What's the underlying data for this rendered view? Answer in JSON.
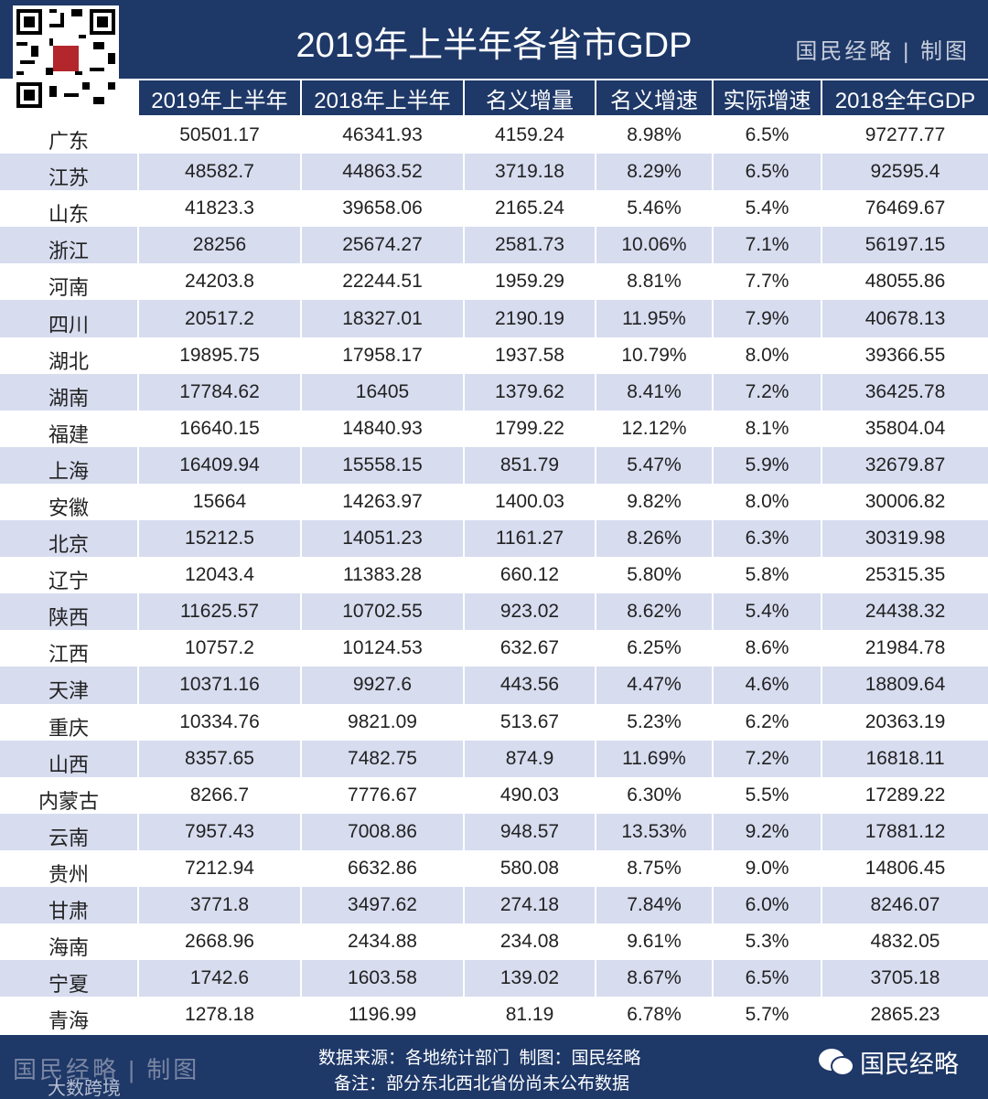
{
  "header": {
    "title": "2019年上半年各省市GDP",
    "brand": "国民经略",
    "brand_suffix": "制图"
  },
  "table": {
    "columns": [
      "2019年上半年",
      "2018年上半年",
      "名义增量",
      "名义增速",
      "实际增速",
      "2018全年GDP"
    ],
    "rows": [
      [
        "广东",
        "50501.17",
        "46341.93",
        "4159.24",
        "8.98%",
        "6.5%",
        "97277.77"
      ],
      [
        "江苏",
        "48582.7",
        "44863.52",
        "3719.18",
        "8.29%",
        "6.5%",
        "92595.4"
      ],
      [
        "山东",
        "41823.3",
        "39658.06",
        "2165.24",
        "5.46%",
        "5.4%",
        "76469.67"
      ],
      [
        "浙江",
        "28256",
        "25674.27",
        "2581.73",
        "10.06%",
        "7.1%",
        "56197.15"
      ],
      [
        "河南",
        "24203.8",
        "22244.51",
        "1959.29",
        "8.81%",
        "7.7%",
        "48055.86"
      ],
      [
        "四川",
        "20517.2",
        "18327.01",
        "2190.19",
        "11.95%",
        "7.9%",
        "40678.13"
      ],
      [
        "湖北",
        "19895.75",
        "17958.17",
        "1937.58",
        "10.79%",
        "8.0%",
        "39366.55"
      ],
      [
        "湖南",
        "17784.62",
        "16405",
        "1379.62",
        "8.41%",
        "7.2%",
        "36425.78"
      ],
      [
        "福建",
        "16640.15",
        "14840.93",
        "1799.22",
        "12.12%",
        "8.1%",
        "35804.04"
      ],
      [
        "上海",
        "16409.94",
        "15558.15",
        "851.79",
        "5.47%",
        "5.9%",
        "32679.87"
      ],
      [
        "安徽",
        "15664",
        "14263.97",
        "1400.03",
        "9.82%",
        "8.0%",
        "30006.82"
      ],
      [
        "北京",
        "15212.5",
        "14051.23",
        "1161.27",
        "8.26%",
        "6.3%",
        "30319.98"
      ],
      [
        "辽宁",
        "12043.4",
        "11383.28",
        "660.12",
        "5.80%",
        "5.8%",
        "25315.35"
      ],
      [
        "陕西",
        "11625.57",
        "10702.55",
        "923.02",
        "8.62%",
        "5.4%",
        "24438.32"
      ],
      [
        "江西",
        "10757.2",
        "10124.53",
        "632.67",
        "6.25%",
        "8.6%",
        "21984.78"
      ],
      [
        "天津",
        "10371.16",
        "9927.6",
        "443.56",
        "4.47%",
        "4.6%",
        "18809.64"
      ],
      [
        "重庆",
        "10334.76",
        "9821.09",
        "513.67",
        "5.23%",
        "6.2%",
        "20363.19"
      ],
      [
        "山西",
        "8357.65",
        "7482.75",
        "874.9",
        "11.69%",
        "7.2%",
        "16818.11"
      ],
      [
        "内蒙古",
        "8266.7",
        "7776.67",
        "490.03",
        "6.30%",
        "5.5%",
        "17289.22"
      ],
      [
        "云南",
        "7957.43",
        "7008.86",
        "948.57",
        "13.53%",
        "9.2%",
        "17881.12"
      ],
      [
        "贵州",
        "7212.94",
        "6632.86",
        "580.08",
        "8.75%",
        "9.0%",
        "14806.45"
      ],
      [
        "甘肃",
        "3771.8",
        "3497.62",
        "274.18",
        "7.84%",
        "6.0%",
        "8246.07"
      ],
      [
        "海南",
        "2668.96",
        "2434.88",
        "234.08",
        "9.61%",
        "5.3%",
        "4832.05"
      ],
      [
        "宁夏",
        "1742.6",
        "1603.58",
        "139.02",
        "8.67%",
        "6.5%",
        "3705.18"
      ],
      [
        "青海",
        "1278.18",
        "1196.99",
        "81.19",
        "6.78%",
        "5.7%",
        "2865.23"
      ]
    ]
  },
  "footer": {
    "source": "数据来源：各地统计部门  制图：国民经略",
    "note": "备注：部分东北西北省份尚未公布数据",
    "account": "国民经略",
    "watermark": "大数跨境"
  }
}
